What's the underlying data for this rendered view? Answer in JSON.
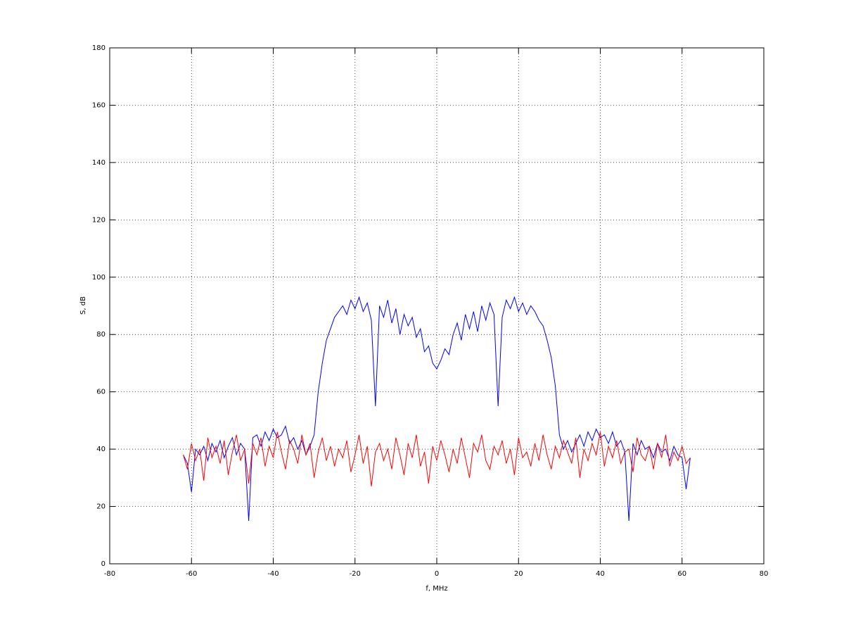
{
  "chart_data": {
    "type": "line",
    "xlabel": "f, MHz",
    "ylabel": "S, dB",
    "x": [
      -62,
      -61,
      -60,
      -59,
      -58,
      -57,
      -56,
      -55,
      -54,
      -53,
      -52,
      -51,
      -50,
      -49,
      -48,
      -47,
      -46,
      -45,
      -44,
      -43,
      -42,
      -41,
      -40,
      -39,
      -38,
      -37,
      -36,
      -35,
      -34,
      -33,
      -32,
      -31,
      -30,
      -29,
      -28,
      -27,
      -26,
      -25,
      -24,
      -23,
      -22,
      -21,
      -20,
      -19,
      -18,
      -17,
      -16,
      -15,
      -14,
      -13,
      -12,
      -11,
      -10,
      -9,
      -8,
      -7,
      -6,
      -5,
      -4,
      -3,
      -2,
      -1,
      0,
      1,
      2,
      3,
      4,
      5,
      6,
      7,
      8,
      9,
      10,
      11,
      12,
      13,
      14,
      15,
      16,
      17,
      18,
      19,
      20,
      21,
      22,
      23,
      24,
      25,
      26,
      27,
      28,
      29,
      30,
      31,
      32,
      33,
      34,
      35,
      36,
      37,
      38,
      39,
      40,
      41,
      42,
      43,
      44,
      45,
      46,
      47,
      48,
      49,
      50,
      51,
      52,
      53,
      54,
      55,
      56,
      57,
      58,
      59,
      60,
      61,
      62
    ],
    "series": [
      {
        "color": "#0000ff",
        "values": [
          38,
          35,
          25,
          40,
          38,
          41,
          36,
          42,
          39,
          43,
          37,
          41,
          44,
          38,
          42,
          40,
          15,
          44,
          45,
          41,
          46,
          43,
          47,
          44,
          45,
          48,
          42,
          44,
          40,
          43,
          38,
          41,
          45,
          60,
          70,
          78,
          82,
          86,
          88,
          90,
          87,
          92,
          89,
          93,
          88,
          91,
          85,
          55,
          90,
          86,
          92,
          84,
          89,
          80,
          87,
          83,
          86,
          79,
          82,
          74,
          76,
          70,
          68,
          71,
          75,
          73,
          80,
          84,
          78,
          87,
          82,
          88,
          81,
          90,
          85,
          91,
          87,
          55,
          86,
          92,
          89,
          93,
          88,
          91,
          87,
          90,
          88,
          85,
          83,
          78,
          72,
          62,
          45,
          40,
          43,
          39,
          42,
          45,
          41,
          46,
          43,
          47,
          44,
          45,
          42,
          46,
          41,
          43,
          39,
          15,
          42,
          38,
          43,
          40,
          41,
          37,
          42,
          39,
          40,
          36,
          41,
          38,
          37,
          26,
          37
        ]
      },
      {
        "color": "#ff0000",
        "values": [
          38,
          33,
          42,
          36,
          40,
          29,
          44,
          37,
          41,
          35,
          43,
          31,
          39,
          45,
          36,
          40,
          28,
          42,
          38,
          44,
          34,
          41,
          37,
          46,
          39,
          33,
          43,
          40,
          35,
          45,
          38,
          42,
          30,
          39,
          44,
          36,
          41,
          34,
          40,
          37,
          43,
          32,
          38,
          45,
          35,
          41,
          27,
          39,
          42,
          36,
          40,
          33,
          44,
          38,
          31,
          42,
          37,
          45,
          34,
          39,
          28,
          41,
          36,
          43,
          38,
          32,
          40,
          35,
          44,
          37,
          30,
          42,
          39,
          45,
          36,
          33,
          41,
          38,
          43,
          35,
          40,
          31,
          44,
          37,
          39,
          34,
          42,
          36,
          45,
          38,
          33,
          41,
          37,
          43,
          39,
          35,
          44,
          30,
          40,
          36,
          42,
          38,
          46,
          34,
          41,
          37,
          43,
          35,
          39,
          40,
          32,
          44,
          38,
          36,
          41,
          33,
          42,
          37,
          45,
          34,
          39,
          36,
          41,
          35,
          37
        ]
      }
    ],
    "xlim": [
      -80,
      80
    ],
    "xticks": [
      -80,
      -60,
      -40,
      -20,
      0,
      20,
      40,
      60,
      80
    ],
    "ylim": [
      0,
      180
    ],
    "yticks": [
      0,
      20,
      40,
      60,
      80,
      100,
      120,
      140,
      160,
      180
    ],
    "grid": true
  }
}
